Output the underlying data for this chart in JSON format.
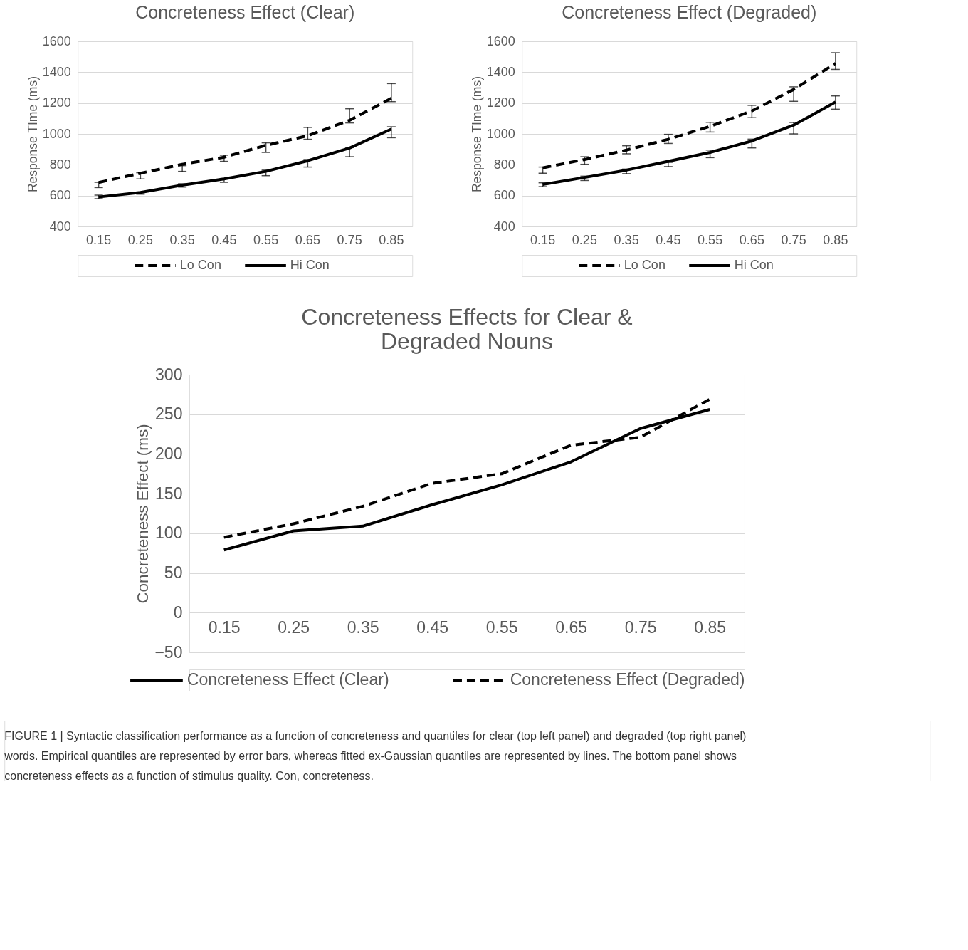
{
  "chart_data": [
    {
      "type": "line",
      "title": "Concreteness Effect (Clear)",
      "ylabel": "Response TIme (ms)",
      "categories": [
        "0.15",
        "0.25",
        "0.35",
        "0.45",
        "0.55",
        "0.65",
        "0.75",
        "0.85"
      ],
      "ylim": [
        400,
        1600
      ],
      "yticks": [
        400,
        600,
        800,
        1000,
        1200,
        1400,
        1600
      ],
      "grid": "y",
      "legend": "bottom",
      "series": [
        {
          "name": "Lo Con",
          "color": "#000000",
          "line_style": "dashed",
          "values": [
            685,
            745,
            803,
            849,
            926,
            988,
            1088,
            1231
          ],
          "errors": [
            [
              652,
              686
            ],
            [
              708,
              748
            ],
            [
              757,
              794
            ],
            [
              822,
              862
            ],
            [
              880,
              942
            ],
            [
              965,
              1042
            ],
            [
              1071,
              1163
            ],
            [
              1209,
              1326
            ]
          ]
        },
        {
          "name": "Hi Con",
          "color": "#000000",
          "line_style": "solid",
          "values": [
            591,
            620,
            668,
            708,
            757,
            826,
            908,
            1031
          ],
          "errors": [
            [
              580,
              603
            ],
            [
              609,
              618
            ],
            [
              655,
              677
            ],
            [
              686,
              711
            ],
            [
              729,
              765
            ],
            [
              785,
              834
            ],
            [
              852,
              911
            ],
            [
              975,
              1046
            ]
          ]
        }
      ]
    },
    {
      "type": "line",
      "title": "Concreteness Effect (Degraded)",
      "ylabel": "Response TIme (ms)",
      "categories": [
        "0.15",
        "0.25",
        "0.35",
        "0.45",
        "0.55",
        "0.65",
        "0.75",
        "0.85"
      ],
      "ylim": [
        400,
        1600
      ],
      "yticks": [
        400,
        600,
        800,
        1000,
        1200,
        1400,
        1600
      ],
      "grid": "y",
      "legend": "bottom",
      "series": [
        {
          "name": "Lo Con",
          "color": "#000000",
          "line_style": "dashed",
          "values": [
            780,
            834,
            895,
            965,
            1049,
            1149,
            1288,
            1457
          ],
          "errors": [
            [
              745,
              785
            ],
            [
              803,
              852
            ],
            [
              871,
              923
            ],
            [
              938,
              997
            ],
            [
              1012,
              1075
            ],
            [
              1105,
              1185
            ],
            [
              1211,
              1305
            ],
            [
              1418,
              1526
            ]
          ]
        },
        {
          "name": "Hi Con",
          "color": "#000000",
          "line_style": "solid",
          "values": [
            672,
            718,
            765,
            822,
            880,
            954,
            1057,
            1206
          ],
          "errors": [
            [
              658,
              683
            ],
            [
              698,
              726
            ],
            [
              742,
              772
            ],
            [
              788,
              815
            ],
            [
              846,
              895
            ],
            [
              909,
              966
            ],
            [
              1000,
              1074
            ],
            [
              1160,
              1246
            ]
          ]
        }
      ]
    },
    {
      "type": "line",
      "title": "Concreteness Effects for Clear & Degraded Nouns",
      "ylabel": "Concreteness Effect (ms)",
      "categories": [
        "0.15",
        "0.25",
        "0.35",
        "0.45",
        "0.55",
        "0.65",
        "0.75",
        "0.85"
      ],
      "ylim": [
        -50,
        300
      ],
      "yticks": [
        -50,
        0,
        50,
        100,
        150,
        200,
        250,
        300
      ],
      "grid": "y",
      "legend": "bottom",
      "series": [
        {
          "name": "Concreteness Effect (Clear)",
          "color": "#000000",
          "line_style": "solid",
          "values": [
            79,
            103,
            109,
            136,
            161,
            190,
            232,
            256
          ]
        },
        {
          "name": "Concreteness Effect (Degraded)",
          "color": "#000000",
          "line_style": "dashed",
          "values": [
            95,
            112,
            134,
            163,
            175,
            211,
            221,
            269
          ]
        }
      ],
      "annotations": [
        "FIGURE 1 | Syntactic classification performance as a function of concreteness and quantiles for clear (top left panel) and degraded (top right panel) words. Empirical quantiles are represented by error bars, whereas fitted ex-Gaussian quantiles are represented by lines. The bottom panel shows concreteness effects as a function of stimulus quality. Con, concreteness."
      ]
    }
  ]
}
